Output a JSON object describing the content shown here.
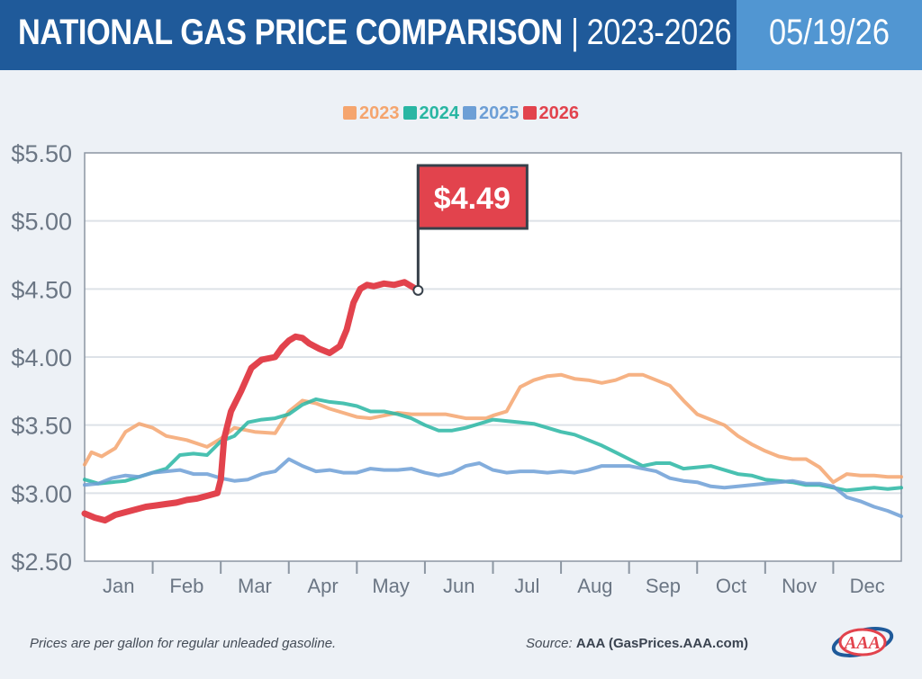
{
  "header": {
    "title_bold": "NATIONAL GAS PRICE COMPARISON",
    "title_rest": " | 2023-2026",
    "date": "05/19/26"
  },
  "footer": {
    "note": "Prices are per gallon for regular unleaded gasoline.",
    "source_label": "Source:",
    "source_value": "AAA (GasPrices.AAA.com)"
  },
  "logo": {
    "text": "AAA"
  },
  "chart_data": {
    "type": "line",
    "title": "NATIONAL GAS PRICE COMPARISON | 2023-2026",
    "xlabel": "",
    "ylabel": "",
    "x_unit": "month (1 = start of Jan, 13 = end of Dec)",
    "xlim": [
      1,
      13
    ],
    "ylim": [
      2.5,
      5.5
    ],
    "yticks": [
      5.5,
      5.0,
      4.5,
      4.0,
      3.5,
      3.0,
      2.5
    ],
    "ytick_labels": [
      "$5.50",
      "$5.00",
      "$4.50",
      "$4.00",
      "$3.50",
      "$3.00",
      "$2.50"
    ],
    "months": [
      "Jan",
      "Feb",
      "Mar",
      "Apr",
      "May",
      "Jun",
      "Jul",
      "Aug",
      "Sep",
      "Oct",
      "Nov",
      "Dec"
    ],
    "grid": true,
    "legend_position": "top-center",
    "annotation": {
      "text": "$4.49",
      "series": "2026",
      "x": 5.9,
      "y": 4.49,
      "color": "#e2434d"
    },
    "series": [
      {
        "name": "2023",
        "color": "#f5a56e",
        "x": [
          1.0,
          1.1,
          1.25,
          1.45,
          1.6,
          1.8,
          2.0,
          2.2,
          2.5,
          2.8,
          3.0,
          3.2,
          3.5,
          3.8,
          4.0,
          4.2,
          4.4,
          4.6,
          4.8,
          5.0,
          5.2,
          5.4,
          5.6,
          5.8,
          6.0,
          6.3,
          6.6,
          6.9,
          7.0,
          7.2,
          7.4,
          7.6,
          7.8,
          8.0,
          8.2,
          8.4,
          8.6,
          8.8,
          9.0,
          9.2,
          9.4,
          9.6,
          9.8,
          10.0,
          10.2,
          10.4,
          10.6,
          10.8,
          11.0,
          11.2,
          11.4,
          11.6,
          11.8,
          12.0,
          12.2,
          12.4,
          12.6,
          12.8,
          13.0
        ],
        "y": [
          3.21,
          3.3,
          3.27,
          3.33,
          3.45,
          3.51,
          3.48,
          3.42,
          3.39,
          3.34,
          3.4,
          3.48,
          3.45,
          3.44,
          3.6,
          3.68,
          3.66,
          3.62,
          3.59,
          3.56,
          3.55,
          3.57,
          3.59,
          3.58,
          3.58,
          3.58,
          3.55,
          3.55,
          3.57,
          3.6,
          3.78,
          3.83,
          3.86,
          3.87,
          3.84,
          3.83,
          3.81,
          3.83,
          3.87,
          3.87,
          3.83,
          3.79,
          3.68,
          3.58,
          3.54,
          3.5,
          3.42,
          3.36,
          3.31,
          3.27,
          3.25,
          3.25,
          3.19,
          3.08,
          3.14,
          3.13,
          3.13,
          3.12,
          3.12
        ]
      },
      {
        "name": "2024",
        "color": "#29b6a3",
        "x": [
          1.0,
          1.2,
          1.4,
          1.6,
          1.8,
          2.0,
          2.2,
          2.4,
          2.6,
          2.8,
          3.0,
          3.2,
          3.4,
          3.6,
          3.8,
          4.0,
          4.2,
          4.4,
          4.6,
          4.8,
          5.0,
          5.2,
          5.4,
          5.6,
          5.8,
          6.0,
          6.2,
          6.4,
          6.6,
          6.8,
          7.0,
          7.2,
          7.4,
          7.6,
          7.8,
          8.0,
          8.2,
          8.4,
          8.6,
          8.8,
          9.0,
          9.2,
          9.4,
          9.6,
          9.8,
          10.0,
          10.2,
          10.4,
          10.6,
          10.8,
          11.0,
          11.2,
          11.4,
          11.6,
          11.8,
          12.0,
          12.2,
          12.4,
          12.6,
          12.8,
          13.0
        ],
        "y": [
          3.1,
          3.07,
          3.08,
          3.09,
          3.12,
          3.15,
          3.18,
          3.28,
          3.29,
          3.28,
          3.38,
          3.42,
          3.52,
          3.54,
          3.55,
          3.58,
          3.65,
          3.69,
          3.67,
          3.66,
          3.64,
          3.6,
          3.6,
          3.58,
          3.55,
          3.5,
          3.46,
          3.46,
          3.48,
          3.51,
          3.54,
          3.53,
          3.52,
          3.51,
          3.48,
          3.45,
          3.43,
          3.39,
          3.35,
          3.3,
          3.25,
          3.2,
          3.22,
          3.22,
          3.18,
          3.19,
          3.2,
          3.17,
          3.14,
          3.13,
          3.1,
          3.09,
          3.08,
          3.06,
          3.06,
          3.04,
          3.02,
          3.03,
          3.04,
          3.03,
          3.04
        ]
      },
      {
        "name": "2025",
        "color": "#6d9fd6",
        "x": [
          1.0,
          1.2,
          1.4,
          1.6,
          1.8,
          2.0,
          2.2,
          2.4,
          2.6,
          2.8,
          3.0,
          3.2,
          3.4,
          3.6,
          3.8,
          4.0,
          4.2,
          4.4,
          4.6,
          4.8,
          5.0,
          5.2,
          5.4,
          5.6,
          5.8,
          6.0,
          6.2,
          6.4,
          6.6,
          6.8,
          7.0,
          7.2,
          7.4,
          7.6,
          7.8,
          8.0,
          8.2,
          8.4,
          8.6,
          8.8,
          9.0,
          9.2,
          9.4,
          9.6,
          9.8,
          10.0,
          10.2,
          10.4,
          10.6,
          10.8,
          11.0,
          11.2,
          11.4,
          11.6,
          11.8,
          12.0,
          12.2,
          12.4,
          12.6,
          12.8,
          13.0
        ],
        "y": [
          3.06,
          3.07,
          3.11,
          3.13,
          3.12,
          3.15,
          3.16,
          3.17,
          3.14,
          3.14,
          3.11,
          3.09,
          3.1,
          3.14,
          3.16,
          3.25,
          3.2,
          3.16,
          3.17,
          3.15,
          3.15,
          3.18,
          3.17,
          3.17,
          3.18,
          3.15,
          3.13,
          3.15,
          3.2,
          3.22,
          3.17,
          3.15,
          3.16,
          3.16,
          3.15,
          3.16,
          3.15,
          3.17,
          3.2,
          3.2,
          3.2,
          3.18,
          3.16,
          3.11,
          3.09,
          3.08,
          3.05,
          3.04,
          3.05,
          3.06,
          3.07,
          3.08,
          3.09,
          3.07,
          3.07,
          3.05,
          2.97,
          2.94,
          2.9,
          2.87,
          2.83
        ]
      },
      {
        "name": "2026",
        "color": "#e2434d",
        "x": [
          1.0,
          1.15,
          1.3,
          1.45,
          1.6,
          1.75,
          1.9,
          2.05,
          2.2,
          2.35,
          2.5,
          2.65,
          2.8,
          2.95,
          3.0,
          3.05,
          3.15,
          3.3,
          3.45,
          3.6,
          3.7,
          3.8,
          3.9,
          4.0,
          4.1,
          4.2,
          4.3,
          4.45,
          4.6,
          4.75,
          4.85,
          4.95,
          5.05,
          5.15,
          5.25,
          5.4,
          5.55,
          5.7,
          5.8,
          5.9
        ],
        "y": [
          2.85,
          2.82,
          2.8,
          2.84,
          2.86,
          2.88,
          2.9,
          2.91,
          2.92,
          2.93,
          2.95,
          2.96,
          2.98,
          3.0,
          3.1,
          3.4,
          3.6,
          3.75,
          3.92,
          3.98,
          3.99,
          4.0,
          4.07,
          4.12,
          4.15,
          4.14,
          4.1,
          4.06,
          4.03,
          4.08,
          4.2,
          4.4,
          4.5,
          4.53,
          4.52,
          4.54,
          4.53,
          4.55,
          4.52,
          4.49
        ]
      }
    ]
  }
}
